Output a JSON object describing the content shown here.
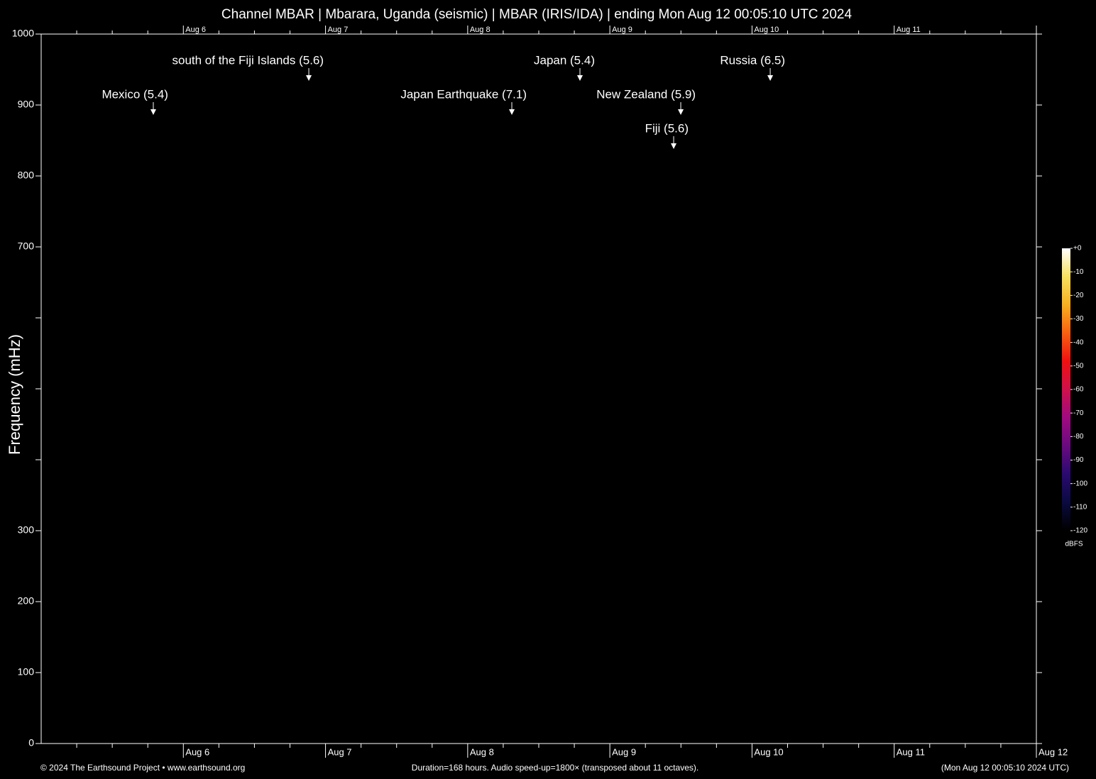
{
  "chart_data": {
    "type": "spectrogram",
    "title": "Channel MBAR | Mbarara, Uganda (seismic) | MBAR (IRIS/IDA) | ending Mon Aug 12 00:05:10 UTC 2024",
    "ylabel": "Frequency (mHz)",
    "xlim": [
      0,
      168
    ],
    "xticks": [
      {
        "value": 24,
        "label": "Aug  6"
      },
      {
        "value": 48,
        "label": "Aug  7"
      },
      {
        "value": 72,
        "label": "Aug  8"
      },
      {
        "value": 96,
        "label": "Aug  9"
      },
      {
        "value": 120,
        "label": "Aug 10"
      },
      {
        "value": 144,
        "label": "Aug 11"
      },
      {
        "value": 168,
        "label": "Aug 12"
      }
    ],
    "xticks_minor": [
      6,
      12,
      18,
      30,
      36,
      42,
      54,
      60,
      66,
      78,
      84,
      90,
      102,
      108,
      114,
      126,
      132,
      138,
      150,
      156,
      162
    ],
    "ylim": [
      0,
      1000
    ],
    "yticks": [
      0,
      100,
      200,
      300,
      700,
      800,
      900,
      1000
    ],
    "yticks_unlabeled": [
      400,
      500,
      600
    ],
    "events": [
      {
        "label": "Mexico (5.4)",
        "x": 18.93
      },
      {
        "label": "south of the Fiji Islands (5.6)",
        "x": 45.18
      },
      {
        "label": "Japan Earthquake (7.1)",
        "x": 79.45
      },
      {
        "label": "Japan (5.4)",
        "x": 90.95
      },
      {
        "label": "New Zealand (5.9)",
        "x": 107.97
      },
      {
        "label": "Fiji (5.6)",
        "x": 106.77
      },
      {
        "label": "Russia (6.5)",
        "x": 123.07
      }
    ],
    "colorbar": {
      "label": "dBFS",
      "lim": [
        -120,
        0
      ],
      "colors": [
        "#000000",
        "#0a0a40",
        "#2a0a70",
        "#6a0a80",
        "#a00a80",
        "#d0104a",
        "#f01010",
        "#f86010",
        "#f8b020",
        "#f8e060",
        "#ffffff"
      ],
      "ticks": [
        {
          "value": 0,
          "label": "+0"
        },
        -10,
        -20,
        -30,
        -40,
        -50,
        -60,
        -70,
        -80,
        -90,
        -100,
        -110,
        -120
      ]
    },
    "footer_left": "© 2024 The Earthsound Project • www.earthsound.org",
    "footer_center": "Duration=168 hours. Audio speed-up=1800× (transposed about 11 octaves).",
    "footer_right": "(Mon Aug 12 00:05:10 2024 UTC)"
  }
}
